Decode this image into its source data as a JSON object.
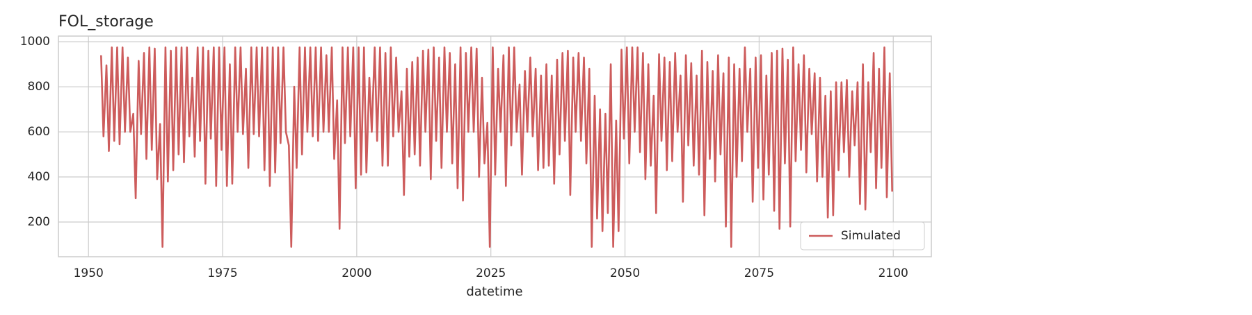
{
  "chart_data": {
    "type": "line",
    "title": "FOL_storage",
    "x_label": "datetime",
    "legend": "lower right",
    "grid": true,
    "xlim": [
      1944.4,
      2107.1
    ],
    "ylim": [
      46,
      1025
    ],
    "xticks": [
      1950,
      1975,
      2000,
      2025,
      2050,
      2075,
      2100
    ],
    "yticks": [
      200,
      400,
      600,
      800,
      1000
    ],
    "series": [
      {
        "name": "Simulated",
        "color": "#cd5c5c",
        "x": [
          1952.35,
          1952.8,
          1953.35,
          1953.8,
          1954.35,
          1954.8,
          1955.35,
          1955.8,
          1956.35,
          1956.8,
          1957.35,
          1957.8,
          1958.35,
          1958.8,
          1959.35,
          1959.8,
          1960.35,
          1960.8,
          1961.35,
          1961.8,
          1962.35,
          1962.8,
          1963.35,
          1963.8,
          1964.35,
          1964.8,
          1965.35,
          1965.8,
          1966.35,
          1966.8,
          1967.35,
          1967.8,
          1968.35,
          1968.8,
          1969.35,
          1969.8,
          1970.35,
          1970.8,
          1971.35,
          1971.8,
          1972.35,
          1972.8,
          1973.35,
          1973.8,
          1974.35,
          1974.8,
          1975.35,
          1975.8,
          1976.35,
          1976.8,
          1977.35,
          1977.8,
          1978.35,
          1978.8,
          1979.35,
          1979.8,
          1980.35,
          1980.8,
          1981.35,
          1981.8,
          1982.35,
          1982.8,
          1983.35,
          1983.8,
          1984.35,
          1984.8,
          1985.35,
          1985.8,
          1986.35,
          1986.8,
          1987.35,
          1987.8,
          1988.35,
          1988.8,
          1989.35,
          1989.8,
          1990.35,
          1990.8,
          1991.35,
          1991.8,
          1992.35,
          1992.8,
          1993.35,
          1993.8,
          1994.35,
          1994.8,
          1995.35,
          1995.8,
          1996.35,
          1996.8,
          1997.35,
          1997.8,
          1998.35,
          1998.8,
          1999.35,
          1999.8,
          2000.35,
          2000.8,
          2001.35,
          2001.8,
          2002.35,
          2002.8,
          2003.35,
          2003.8,
          2004.35,
          2004.8,
          2005.35,
          2005.8,
          2006.35,
          2006.8,
          2007.35,
          2007.8,
          2008.35,
          2008.8,
          2009.35,
          2009.8,
          2010.35,
          2010.8,
          2011.35,
          2011.8,
          2012.35,
          2012.8,
          2013.35,
          2013.8,
          2014.35,
          2014.8,
          2015.35,
          2015.8,
          2016.35,
          2016.8,
          2017.35,
          2017.8,
          2018.35,
          2018.8,
          2019.35,
          2019.8,
          2020.35,
          2020.8,
          2021.35,
          2021.8,
          2022.35,
          2022.8,
          2023.35,
          2023.8,
          2024.35,
          2024.8,
          2025.35,
          2025.8,
          2026.35,
          2026.8,
          2027.35,
          2027.8,
          2028.35,
          2028.8,
          2029.35,
          2029.8,
          2030.35,
          2030.8,
          2031.35,
          2031.8,
          2032.35,
          2032.8,
          2033.35,
          2033.8,
          2034.35,
          2034.8,
          2035.35,
          2035.8,
          2036.35,
          2036.8,
          2037.35,
          2037.8,
          2038.35,
          2038.8,
          2039.35,
          2039.8,
          2040.35,
          2040.8,
          2041.35,
          2041.8,
          2042.35,
          2042.8,
          2043.35,
          2043.8,
          2044.35,
          2044.8,
          2045.35,
          2045.8,
          2046.35,
          2046.8,
          2047.35,
          2047.8,
          2048.35,
          2048.8,
          2049.35,
          2049.8,
          2050.35,
          2050.8,
          2051.35,
          2051.8,
          2052.35,
          2052.8,
          2053.35,
          2053.8,
          2054.35,
          2054.8,
          2055.35,
          2055.8,
          2056.35,
          2056.8,
          2057.35,
          2057.8,
          2058.35,
          2058.8,
          2059.35,
          2059.8,
          2060.35,
          2060.8,
          2061.35,
          2061.8,
          2062.35,
          2062.8,
          2063.35,
          2063.8,
          2064.35,
          2064.8,
          2065.35,
          2065.8,
          2066.35,
          2066.8,
          2067.35,
          2067.8,
          2068.35,
          2068.8,
          2069.35,
          2069.8,
          2070.35,
          2070.8,
          2071.35,
          2071.8,
          2072.35,
          2072.8,
          2073.35,
          2073.8,
          2074.35,
          2074.8,
          2075.35,
          2075.8,
          2076.35,
          2076.8,
          2077.35,
          2077.8,
          2078.35,
          2078.8,
          2079.35,
          2079.8,
          2080.35,
          2080.8,
          2081.35,
          2081.8,
          2082.35,
          2082.8,
          2083.35,
          2083.8,
          2084.35,
          2084.8,
          2085.35,
          2085.8,
          2086.35,
          2086.8,
          2087.35,
          2087.8,
          2088.35,
          2088.8,
          2089.35,
          2089.8,
          2090.35,
          2090.8,
          2091.35,
          2091.8,
          2092.35,
          2092.8,
          2093.35,
          2093.8,
          2094.35,
          2094.8,
          2095.35,
          2095.8,
          2096.35,
          2096.8,
          2097.35,
          2097.8,
          2098.35,
          2098.8,
          2099.35,
          2099.8
        ],
        "values": [
          940,
          580,
          895,
          515,
          975,
          560,
          975,
          545,
          975,
          600,
          930,
          600,
          680,
          305,
          915,
          590,
          950,
          480,
          975,
          520,
          970,
          390,
          635,
          90,
          975,
          380,
          960,
          430,
          975,
          500,
          975,
          465,
          975,
          580,
          840,
          490,
          975,
          560,
          975,
          370,
          960,
          570,
          975,
          360,
          975,
          520,
          975,
          360,
          900,
          370,
          975,
          600,
          975,
          590,
          880,
          440,
          975,
          590,
          975,
          580,
          975,
          430,
          975,
          360,
          975,
          420,
          975,
          550,
          975,
          600,
          540,
          90,
          800,
          440,
          975,
          500,
          975,
          600,
          975,
          580,
          975,
          560,
          975,
          600,
          940,
          600,
          975,
          480,
          740,
          170,
          975,
          550,
          975,
          580,
          975,
          350,
          975,
          410,
          975,
          420,
          840,
          600,
          975,
          560,
          975,
          450,
          950,
          450,
          975,
          580,
          930,
          600,
          780,
          320,
          880,
          490,
          910,
          500,
          930,
          450,
          960,
          600,
          965,
          390,
          975,
          560,
          930,
          440,
          975,
          600,
          950,
          460,
          900,
          350,
          975,
          295,
          950,
          600,
          975,
          600,
          970,
          400,
          840,
          460,
          640,
          90,
          975,
          410,
          880,
          600,
          940,
          360,
          975,
          540,
          975,
          600,
          810,
          410,
          870,
          600,
          930,
          580,
          880,
          430,
          850,
          440,
          900,
          450,
          850,
          370,
          920,
          500,
          950,
          560,
          960,
          320,
          930,
          600,
          950,
          560,
          930,
          460,
          880,
          90,
          760,
          215,
          700,
          160,
          680,
          240,
          900,
          90,
          650,
          160,
          965,
          570,
          975,
          460,
          975,
          600,
          975,
          510,
          950,
          390,
          900,
          450,
          760,
          240,
          945,
          560,
          930,
          430,
          910,
          470,
          950,
          600,
          850,
          290,
          940,
          540,
          905,
          450,
          850,
          410,
          960,
          230,
          910,
          480,
          870,
          380,
          940,
          500,
          860,
          180,
          930,
          90,
          900,
          400,
          880,
          470,
          975,
          600,
          880,
          290,
          930,
          440,
          940,
          300,
          850,
          410,
          950,
          250,
          960,
          170,
          970,
          460,
          920,
          180,
          975,
          470,
          900,
          520,
          940,
          420,
          880,
          590,
          860,
          380,
          840,
          400,
          760,
          220,
          780,
          230,
          820,
          430,
          820,
          510,
          830,
          400,
          780,
          540,
          820,
          280,
          900,
          255,
          820,
          510,
          950,
          350,
          880,
          440,
          975,
          310,
          860,
          335
        ]
      }
    ]
  }
}
